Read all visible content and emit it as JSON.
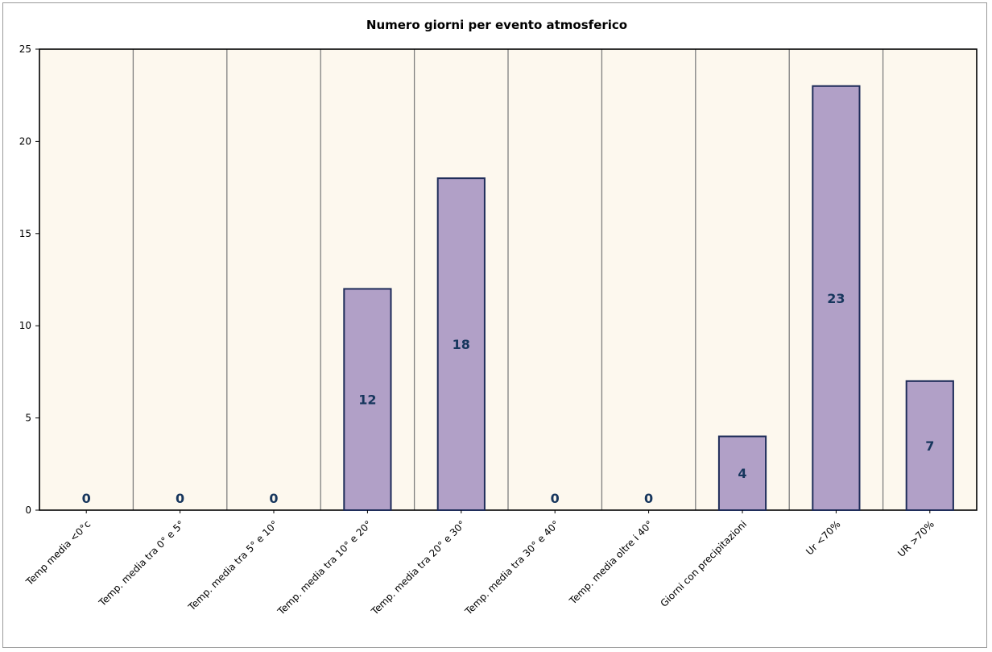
{
  "chart_data": {
    "type": "bar",
    "title": "Numero giorni  per evento atmosferico",
    "xlabel": "",
    "ylabel": "",
    "categories": [
      "Temp media <0°c",
      "Temp. media tra 0° e 5°",
      "Temp. media tra 5° e 10°",
      "Temp. media tra 10° e 20°",
      "Temp. media tra 20° e 30°",
      "Temp. media tra 30° e 40°",
      "Temp. media oltre i 40°",
      "Giorni con precipitazioni",
      "Ur  <70%",
      "UR >70%"
    ],
    "values": [
      0,
      0,
      0,
      12,
      18,
      0,
      0,
      4,
      23,
      7
    ],
    "data_labels": [
      "0",
      "0",
      "0",
      "12",
      "18",
      "0",
      "0",
      "4",
      "23",
      "7"
    ],
    "ylim": [
      0,
      25
    ],
    "yticks": [
      "0",
      "5",
      "10",
      "15",
      "20",
      "25"
    ],
    "ytick_values": [
      0,
      5,
      10,
      15,
      20,
      25
    ],
    "grid": "vertical lines between categories",
    "legend": "none",
    "colors": {
      "bar_fill": "#b1a0c7",
      "bar_stroke": "#1f2d5a",
      "plot_bg": "#fdf8ee",
      "grid": "#7f7f7f",
      "data_label": "#17365d"
    }
  }
}
